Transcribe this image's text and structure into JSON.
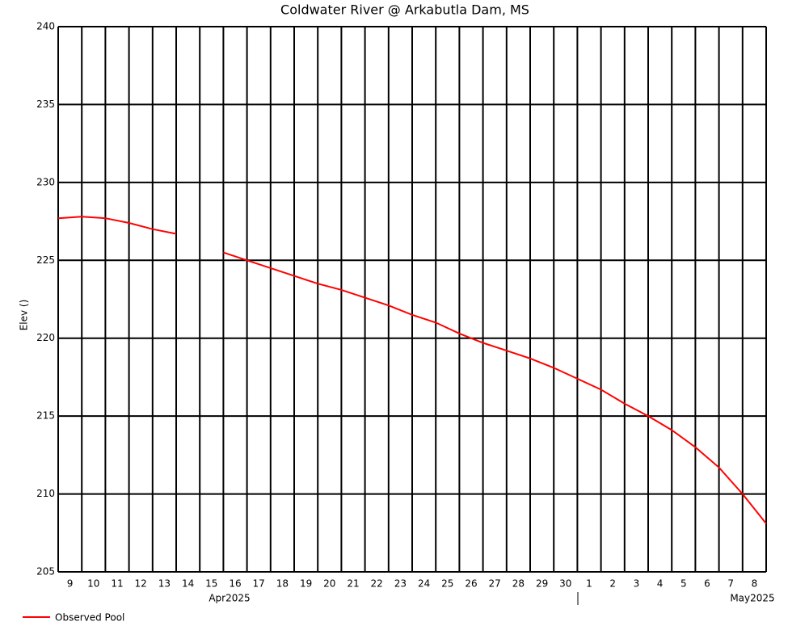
{
  "chart_data": {
    "type": "line",
    "title": "Coldwater River @ Arkabutla Dam, MS",
    "y_label": "Elev ()",
    "x": [
      "2025-04-09",
      "2025-04-10",
      "2025-04-11",
      "2025-04-12",
      "2025-04-13",
      "2025-04-14",
      "2025-04-15",
      "2025-04-16",
      "2025-04-17",
      "2025-04-18",
      "2025-04-19",
      "2025-04-20",
      "2025-04-21",
      "2025-04-22",
      "2025-04-23",
      "2025-04-24",
      "2025-04-25",
      "2025-04-26",
      "2025-04-27",
      "2025-04-28",
      "2025-04-29",
      "2025-04-30",
      "2025-05-01",
      "2025-05-02",
      "2025-05-03",
      "2025-05-04",
      "2025-05-05",
      "2025-05-06",
      "2025-05-07",
      "2025-05-08",
      "2025-05-09"
    ],
    "series": [
      {
        "name": "Observed Pool",
        "color": "#ff0000",
        "values": [
          227.7,
          227.8,
          227.7,
          227.4,
          227.0,
          226.7,
          null,
          225.5,
          225.0,
          224.5,
          224.0,
          223.5,
          223.1,
          222.6,
          222.1,
          221.5,
          221.0,
          220.3,
          219.7,
          219.2,
          218.7,
          218.1,
          217.4,
          216.7,
          215.8,
          215.0,
          214.1,
          213.0,
          211.7,
          210.0,
          208.1
        ]
      }
    ],
    "xlim": [
      "2025-04-09",
      "2025-05-09"
    ],
    "xticks": [
      {
        "value": "2025-04-09",
        "label": "9"
      },
      {
        "value": "2025-04-10",
        "label": "10"
      },
      {
        "value": "2025-04-11",
        "label": "11"
      },
      {
        "value": "2025-04-12",
        "label": "12"
      },
      {
        "value": "2025-04-13",
        "label": "13"
      },
      {
        "value": "2025-04-14",
        "label": "14"
      },
      {
        "value": "2025-04-15",
        "label": "15"
      },
      {
        "value": "2025-04-16",
        "label": "16"
      },
      {
        "value": "2025-04-17",
        "label": "17"
      },
      {
        "value": "2025-04-18",
        "label": "18"
      },
      {
        "value": "2025-04-19",
        "label": "19"
      },
      {
        "value": "2025-04-20",
        "label": "20"
      },
      {
        "value": "2025-04-21",
        "label": "21"
      },
      {
        "value": "2025-04-22",
        "label": "22"
      },
      {
        "value": "2025-04-23",
        "label": "23"
      },
      {
        "value": "2025-04-24",
        "label": "24"
      },
      {
        "value": "2025-04-25",
        "label": "25"
      },
      {
        "value": "2025-04-26",
        "label": "26"
      },
      {
        "value": "2025-04-27",
        "label": "27"
      },
      {
        "value": "2025-04-28",
        "label": "28"
      },
      {
        "value": "2025-04-29",
        "label": "29"
      },
      {
        "value": "2025-04-30",
        "label": "30"
      },
      {
        "value": "2025-05-01",
        "label": "1"
      },
      {
        "value": "2025-05-02",
        "label": "2"
      },
      {
        "value": "2025-05-03",
        "label": "3"
      },
      {
        "value": "2025-05-04",
        "label": "4"
      },
      {
        "value": "2025-05-05",
        "label": "5"
      },
      {
        "value": "2025-05-06",
        "label": "6"
      },
      {
        "value": "2025-05-07",
        "label": "7"
      },
      {
        "value": "2025-05-08",
        "label": "8"
      }
    ],
    "month_labels": [
      "Apr2025",
      "May2025"
    ],
    "ylim": [
      205,
      240
    ],
    "yticks": [
      205,
      210,
      215,
      220,
      225,
      230,
      235,
      240
    ],
    "grid": true
  }
}
